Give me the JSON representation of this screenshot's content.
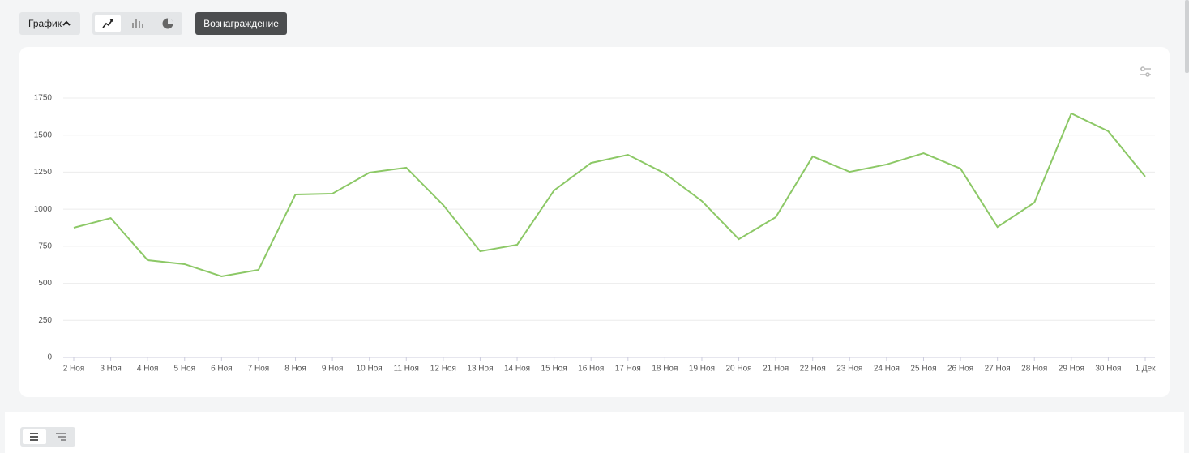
{
  "toolbar": {
    "chart_button": "График",
    "reward_button": "Вознаграждение"
  },
  "chart_data": {
    "type": "line",
    "categories": [
      "2 Ноя",
      "3 Ноя",
      "4 Ноя",
      "5 Ноя",
      "6 Ноя",
      "7 Ноя",
      "8 Ноя",
      "9 Ноя",
      "10 Ноя",
      "11 Ноя",
      "12 Ноя",
      "13 Ноя",
      "14 Ноя",
      "15 Ноя",
      "16 Ноя",
      "17 Ноя",
      "18 Ноя",
      "19 Ноя",
      "20 Ноя",
      "21 Ноя",
      "22 Ноя",
      "23 Ноя",
      "24 Ноя",
      "25 Ноя",
      "26 Ноя",
      "27 Ноя",
      "28 Ноя",
      "29 Ноя",
      "30 Ноя",
      "1 Дек"
    ],
    "values": [
      875,
      940,
      656,
      629,
      547,
      591,
      1099,
      1105,
      1247,
      1280,
      1028,
      716,
      760,
      1127,
      1312,
      1367,
      1241,
      1055,
      798,
      946,
      1356,
      1252,
      1302,
      1378,
      1274,
      880,
      1045,
      1646,
      1526,
      1220
    ],
    "color": "#8cc866",
    "ylim": [
      0,
      1750
    ],
    "yticks": [
      0,
      250,
      500,
      750,
      1000,
      1250,
      1500,
      1750
    ],
    "grid": true
  }
}
